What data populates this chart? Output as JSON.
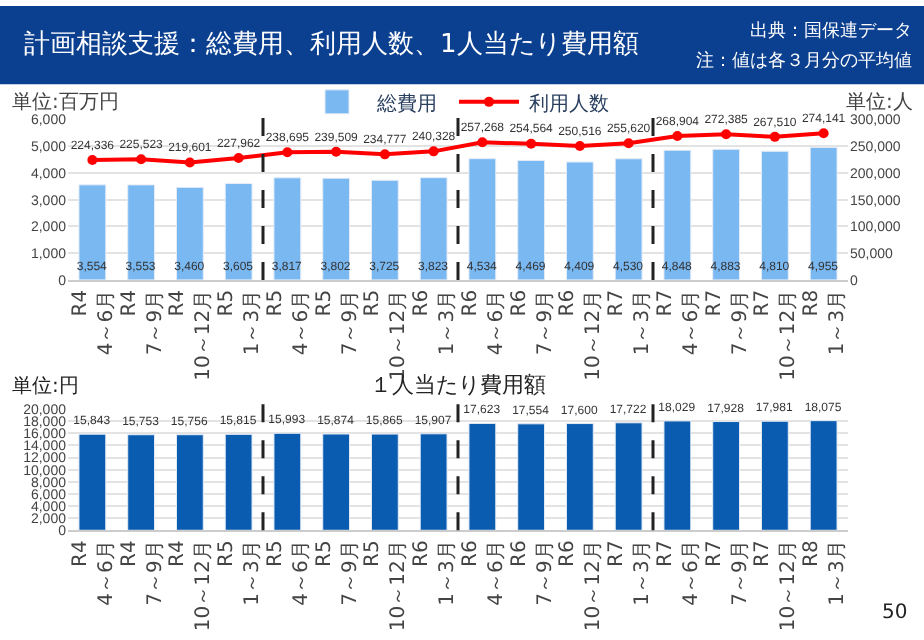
{
  "chart_data": [
    {
      "type": "bar",
      "title": "計画相談支援：総費用、利用人数、1人当たり費用額",
      "categories": [
        "R4\n4～6月",
        "R4\n7～9月",
        "R4\n10～12月",
        "R5\n1～3月",
        "R5\n4～6月",
        "R5\n7～9月",
        "R5\n10～12月",
        "R6\n1～3月",
        "R6\n4～6月",
        "R6\n7～9月",
        "R6\n10～12月",
        "R7\n1～3月",
        "R7\n4～6月",
        "R7\n7～9月",
        "R7\n10～12月",
        "R8\n1～3月"
      ],
      "series": [
        {
          "name": "総費用",
          "type": "bar",
          "color": "#7ab8f2",
          "values": [
            3554,
            3553,
            3460,
            3605,
            3817,
            3802,
            3725,
            3823,
            4534,
            4469,
            4409,
            4530,
            4848,
            4883,
            4810,
            4955
          ],
          "value_labels": [
            "3,554",
            "3,553",
            "3,460",
            "3,605",
            "3,817",
            "3,802",
            "3,725",
            "3,823",
            "4,534",
            "4,469",
            "4,409",
            "4,530",
            "4,848",
            "4,883",
            "4,810",
            "4,955"
          ]
        },
        {
          "name": "利用人数",
          "type": "line",
          "axis": "y2",
          "color": "#ff0000",
          "values": [
            224336,
            225523,
            219601,
            227962,
            238695,
            239509,
            234777,
            240328,
            257268,
            254564,
            250516,
            255620,
            268904,
            272385,
            267510,
            274141
          ],
          "value_labels": [
            "224,336",
            "225,523",
            "219,601",
            "227,962",
            "238,695",
            "239,509",
            "234,777",
            "240,328",
            "257,268",
            "254,564",
            "250,516",
            "255,620",
            "268,904",
            "272,385",
            "267,510",
            "274,141"
          ]
        }
      ],
      "ylim": [
        0,
        6000
      ],
      "yticks": [
        {
          "value": 0,
          "label": "0"
        },
        {
          "value": 1000,
          "label": "1,000"
        },
        {
          "value": 2000,
          "label": "2,000"
        },
        {
          "value": 3000,
          "label": "3,000"
        },
        {
          "value": 4000,
          "label": "4,000"
        },
        {
          "value": 5000,
          "label": "5,000"
        },
        {
          "value": 6000,
          "label": "6,000"
        }
      ],
      "y2lim": [
        0,
        300000
      ],
      "y2ticks": [
        {
          "value": 0,
          "label": "0"
        },
        {
          "value": 50000,
          "label": "50,000"
        },
        {
          "value": 100000,
          "label": "100,000"
        },
        {
          "value": 150000,
          "label": "150,000"
        },
        {
          "value": 200000,
          "label": "200,000"
        },
        {
          "value": 250000,
          "label": "250,000"
        },
        {
          "value": 300000,
          "label": "300,000"
        }
      ],
      "annotations": [
        "単位:百万円",
        "単位:人",
        "出典：国保連データ",
        "注：値は各３月分の平均値"
      ],
      "grid": "y",
      "legend": "top",
      "marker": "circle"
    },
    {
      "type": "bar",
      "title": "１人当たり費用額",
      "categories": [
        "R4\n4～6月",
        "R4\n7～9月",
        "R4\n10～12月",
        "R5\n1～3月",
        "R5\n4～6月",
        "R5\n7～9月",
        "R5\n10～12月",
        "R6\n1～3月",
        "R6\n4～6月",
        "R6\n7～9月",
        "R6\n10～12月",
        "R7\n1～3月",
        "R7\n4～6月",
        "R7\n7～9月",
        "R7\n10～12月",
        "R8\n1～3月"
      ],
      "color": "#0a5cb0",
      "values": [
        15843,
        15753,
        15756,
        15815,
        15993,
        15874,
        15865,
        15907,
        17623,
        17554,
        17600,
        17722,
        18029,
        17928,
        17981,
        18075
      ],
      "ylim": [
        0,
        20000
      ],
      "yticks": [
        {
          "value": 0,
          "label": "0"
        },
        {
          "value": 2000,
          "label": "2,000"
        },
        {
          "value": 4000,
          "label": "4,000"
        },
        {
          "value": 6000,
          "label": "6,000"
        },
        {
          "value": 8000,
          "label": "8,000"
        },
        {
          "value": 10000,
          "label": "10,000"
        },
        {
          "value": 12000,
          "label": "12,000"
        },
        {
          "value": 14000,
          "label": "14,000"
        },
        {
          "value": 16000,
          "label": "16,000"
        },
        {
          "value": 18000,
          "label": "18,000"
        },
        {
          "value": 20000,
          "label": "20,000"
        }
      ],
      "value_labels": [
        "15,843",
        "15,753",
        "15,756",
        "15,815",
        "15,993",
        "15,874",
        "15,865",
        "15,907",
        "17,623",
        "17,554",
        "17,600",
        "17,722",
        "18,029",
        "17,928",
        "17,981",
        "18,075"
      ],
      "annotations": [
        "単位:円",
        "50"
      ],
      "grid": "y"
    }
  ]
}
